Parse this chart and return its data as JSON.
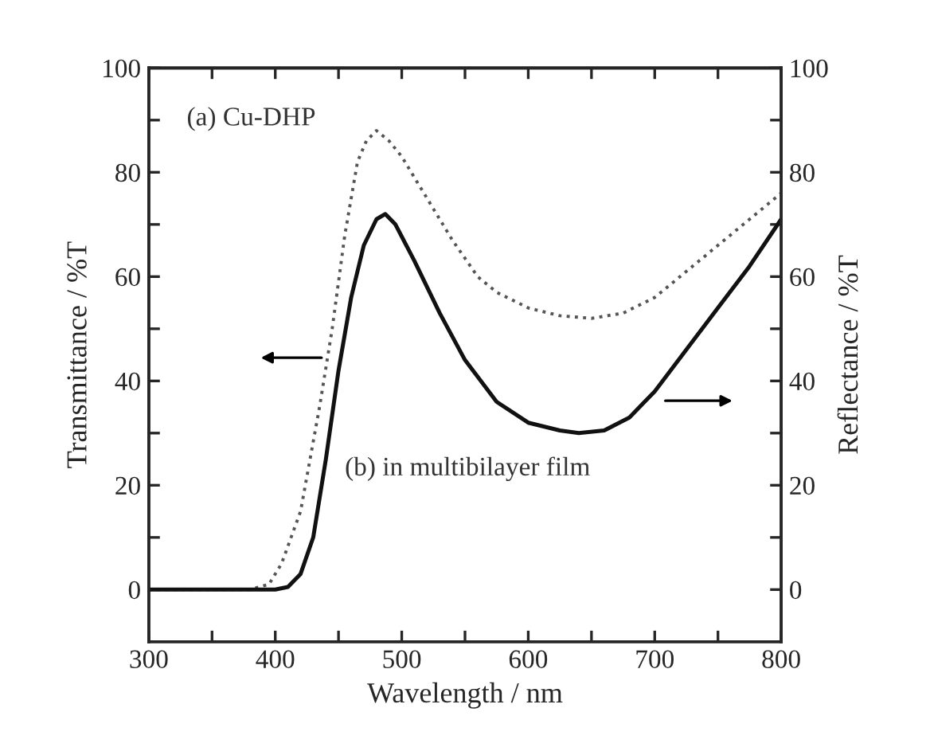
{
  "chart_data": {
    "type": "line",
    "xlabel": "Wavelength / nm",
    "ylabel": "Transmittance / %T",
    "y2label": "Reflectance / %T",
    "xlim": [
      300,
      800
    ],
    "xticks": [
      300,
      {
        "value": 350,
        "label": null
      },
      400,
      {
        "value": 450,
        "label": null
      },
      500,
      {
        "value": 550,
        "label": null
      },
      600,
      {
        "value": 650,
        "label": null
      },
      700,
      {
        "value": 750,
        "label": null
      },
      800
    ],
    "ylim": [
      -10,
      100
    ],
    "yticks": [
      0,
      {
        "value": 10,
        "label": null
      },
      20,
      {
        "value": 30,
        "label": null
      },
      40,
      {
        "value": 50,
        "label": null
      },
      60,
      {
        "value": 70,
        "label": null
      },
      80,
      {
        "value": 90,
        "label": null
      },
      100
    ],
    "y2lim": [
      -10,
      100
    ],
    "y2ticks": [
      0,
      {
        "value": 10,
        "label": null
      },
      20,
      {
        "value": 30,
        "label": null
      },
      40,
      {
        "value": 50,
        "label": null
      },
      60,
      {
        "value": 70,
        "label": null
      },
      80,
      {
        "value": 90,
        "label": null
      },
      100
    ],
    "series": [
      {
        "color": "#555555",
        "line_style": "dotted",
        "x": [
          300,
          350,
          380,
          395,
          405,
          420,
          435,
          445,
          455,
          465,
          472,
          480,
          490,
          500,
          520,
          540,
          560,
          575,
          600,
          625,
          650,
          675,
          700,
          725,
          750,
          775,
          800
        ],
        "values": [
          0,
          0,
          0,
          1,
          5,
          15,
          35,
          50,
          68,
          82,
          86,
          88,
          86,
          83,
          75,
          67,
          60,
          57,
          54,
          52.5,
          52,
          53,
          56,
          61,
          66,
          71,
          76
        ]
      },
      {
        "color": "#111111",
        "line_style": "solid",
        "axis": "y2",
        "x": [
          300,
          380,
          400,
          410,
          420,
          430,
          440,
          450,
          460,
          470,
          480,
          487,
          495,
          510,
          530,
          550,
          575,
          600,
          625,
          640,
          660,
          680,
          700,
          725,
          750,
          775,
          800
        ],
        "values": [
          0,
          0,
          0,
          0.5,
          3,
          10,
          25,
          42,
          56,
          66,
          71,
          72,
          70,
          63,
          53,
          44,
          36,
          32,
          30.5,
          30,
          30.5,
          33,
          38,
          46,
          54,
          62,
          71
        ]
      }
    ],
    "annotations": [
      "(a) Cu-DHP",
      "(b) in multibilayer film"
    ],
    "grid": false,
    "legend": false
  }
}
